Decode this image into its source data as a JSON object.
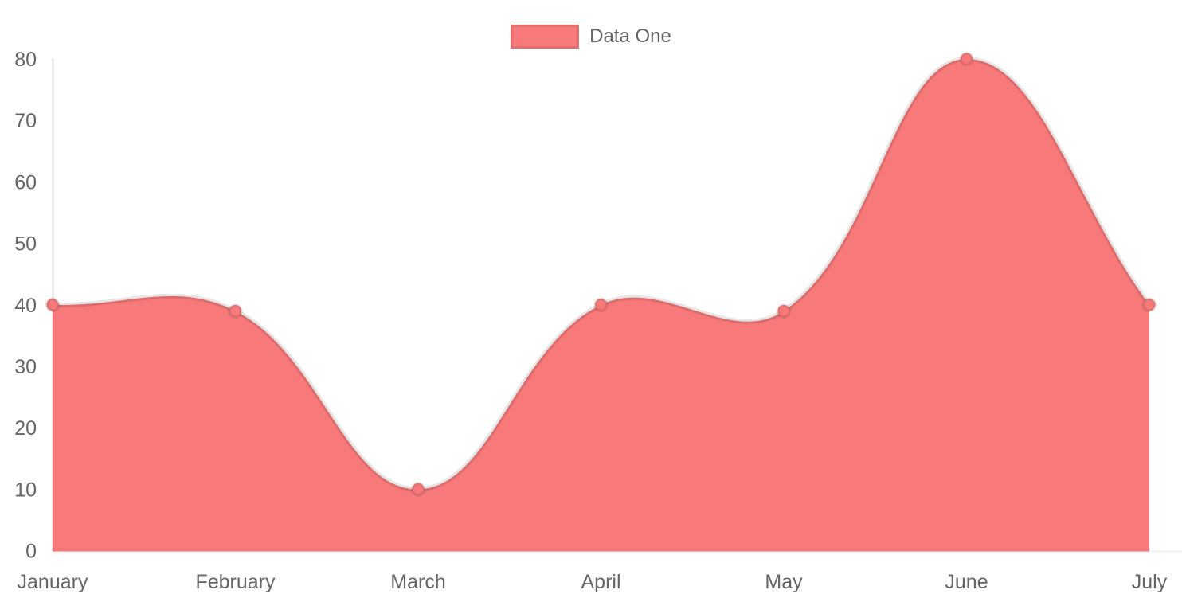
{
  "chart_data": {
    "type": "area",
    "title": "",
    "categories": [
      "January",
      "February",
      "March",
      "April",
      "May",
      "June",
      "July"
    ],
    "series": [
      {
        "name": "Data One",
        "values": [
          40,
          39,
          10,
          40,
          39,
          80,
          40
        ],
        "fill_color": "#f87979",
        "border_color": "rgba(0,0,0,0.1)"
      }
    ],
    "xlabel": "",
    "ylabel": "",
    "ylim": [
      0,
      80
    ],
    "y_ticks": [
      0,
      10,
      20,
      30,
      40,
      50,
      60,
      70,
      80
    ],
    "grid": false,
    "legend_position": "top",
    "line_tension": 0.4
  },
  "legend": {
    "label": "Data One"
  },
  "colors": {
    "series_fill": "#f87979",
    "series_border": "rgba(0,0,0,0.1)",
    "axis_line": "rgba(0,0,0,0.1)",
    "baseline": "rgba(0,0,0,0.06)",
    "tick_text": "#666666"
  }
}
